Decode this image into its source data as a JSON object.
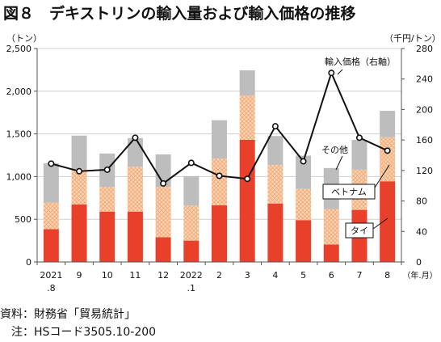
{
  "title": "図８　デキストリンの輸入量および輸入価格の推移",
  "notes": {
    "source": "資料：財務省「貿易統計」",
    "note": "　注：HSコード3505.10-200"
  },
  "chart_data": {
    "type": "bar",
    "title": "図８　デキストリンの輸入量および輸入価格の推移",
    "x_unit_label": "（年.月）",
    "categories": [
      [
        "2021",
        ".8"
      ],
      [
        "9"
      ],
      [
        "10"
      ],
      [
        "11"
      ],
      [
        "12"
      ],
      [
        "2022",
        ".1"
      ],
      [
        "2"
      ],
      [
        "3"
      ],
      [
        "4"
      ],
      [
        "5"
      ],
      [
        "6"
      ],
      [
        "7"
      ],
      [
        "8"
      ]
    ],
    "stacked": true,
    "left_axis": {
      "unit_label": "（トン）",
      "ylim": [
        0,
        2500
      ],
      "ticks": [
        0,
        500,
        1000,
        1500,
        2000,
        2500
      ],
      "tick_labels": [
        "0",
        "500",
        "1,000",
        "1,500",
        "2,000",
        "2,500"
      ]
    },
    "right_axis": {
      "unit_label": "（千円/トン）",
      "ylim": [
        0,
        280
      ],
      "ticks": [
        0,
        40,
        80,
        120,
        160,
        200,
        240,
        280
      ]
    },
    "grid": true,
    "series": [
      {
        "name": "タイ",
        "color": "#e8402a",
        "pattern": "solid",
        "values": [
          385,
          675,
          590,
          590,
          290,
          250,
          665,
          1430,
          685,
          490,
          205,
          610,
          945
        ]
      },
      {
        "name": "ベトナム",
        "color": "#f4b183",
        "pattern": "crosshatch",
        "values": [
          310,
          410,
          290,
          525,
          590,
          410,
          545,
          520,
          450,
          365,
          415,
          470,
          515
        ]
      },
      {
        "name": "その他",
        "color": "#bdbdbd",
        "pattern": "solid",
        "values": [
          460,
          395,
          390,
          335,
          380,
          345,
          450,
          295,
          340,
          390,
          480,
          350,
          310
        ]
      },
      {
        "name": "輸入価格（右軸）",
        "type": "line",
        "axis": "right",
        "color": "#111111",
        "values": [
          129,
          119,
          121,
          163,
          103,
          130,
          113,
          109,
          178,
          132,
          248,
          163,
          146
        ]
      }
    ],
    "annotations": [
      "輸入価格（右軸）",
      "その他",
      "ベトナム",
      "タイ"
    ]
  }
}
